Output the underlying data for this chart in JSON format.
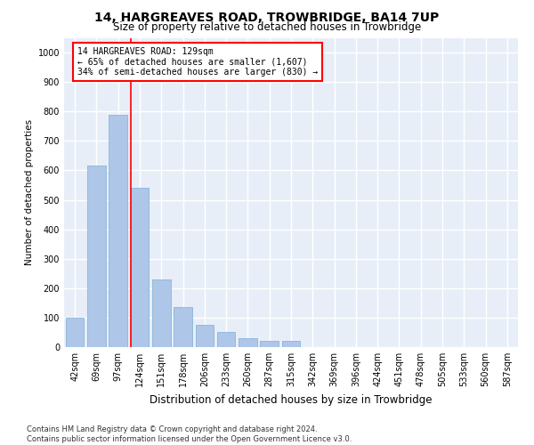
{
  "title": "14, HARGREAVES ROAD, TROWBRIDGE, BA14 7UP",
  "subtitle": "Size of property relative to detached houses in Trowbridge",
  "xlabel": "Distribution of detached houses by size in Trowbridge",
  "ylabel": "Number of detached properties",
  "categories": [
    "42sqm",
    "69sqm",
    "97sqm",
    "124sqm",
    "151sqm",
    "178sqm",
    "206sqm",
    "233sqm",
    "260sqm",
    "287sqm",
    "315sqm",
    "342sqm",
    "369sqm",
    "396sqm",
    "424sqm",
    "451sqm",
    "478sqm",
    "505sqm",
    "533sqm",
    "560sqm",
    "587sqm"
  ],
  "values": [
    100,
    615,
    790,
    540,
    230,
    135,
    75,
    50,
    30,
    20,
    20,
    0,
    0,
    0,
    0,
    0,
    0,
    0,
    0,
    0,
    0
  ],
  "bar_color": "#aec6e8",
  "bar_edgecolor": "#7aafd4",
  "bg_color": "#e8eef8",
  "grid_color": "#ffffff",
  "vline_x_index": 3.0,
  "vline_color": "red",
  "annotation_text": "14 HARGREAVES ROAD: 129sqm\n← 65% of detached houses are smaller (1,607)\n34% of semi-detached houses are larger (830) →",
  "annotation_box_color": "red",
  "ylim": [
    0,
    1050
  ],
  "yticks": [
    0,
    100,
    200,
    300,
    400,
    500,
    600,
    700,
    800,
    900,
    1000
  ],
  "footer_line1": "Contains HM Land Registry data © Crown copyright and database right 2024.",
  "footer_line2": "Contains public sector information licensed under the Open Government Licence v3.0.",
  "title_fontsize": 10,
  "subtitle_fontsize": 8.5,
  "xlabel_fontsize": 8.5,
  "ylabel_fontsize": 7.5,
  "tick_fontsize": 7,
  "annotation_fontsize": 7,
  "footer_fontsize": 6
}
